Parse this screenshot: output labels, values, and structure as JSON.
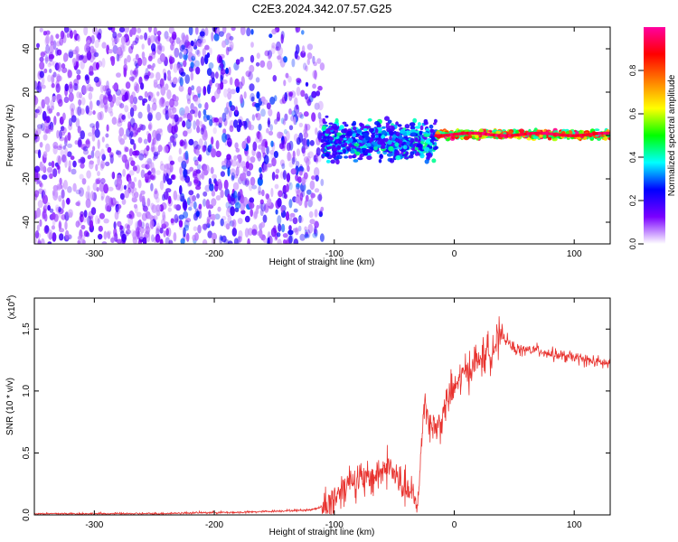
{
  "figure": {
    "title": "C2E3.2024.342.07.57.G25"
  },
  "chart_data": [
    {
      "type": "heatmap",
      "xlabel": "Height of straight line (km)",
      "ylabel": "Frequency (Hz)",
      "xlim": [
        -350,
        130
      ],
      "ylim": [
        -50,
        50
      ],
      "xticks": [
        -300,
        -200,
        -100,
        0,
        100
      ],
      "xtick_labels": [
        "-300",
        "-200",
        "-100",
        "0",
        "100"
      ],
      "yticks": [
        -40,
        -20,
        0,
        20,
        40
      ],
      "ytick_labels": [
        "-40",
        "-20",
        "0",
        "20",
        "40"
      ],
      "grid": false,
      "colorbar": {
        "label": "Normalized spectral amplitude",
        "range": [
          0,
          1
        ],
        "ticks": [
          0,
          0.2,
          0.4,
          0.6,
          0.8
        ],
        "tick_labels": [
          "0.0",
          "0.2",
          "0.4",
          "0.6",
          "0.8"
        ],
        "colors": [
          "#ffffff",
          "#7a00ff",
          "#0000ff",
          "#00ffff",
          "#00ff00",
          "#ffff00",
          "#ff8000",
          "#ff0000",
          "#ff00a0"
        ]
      },
      "regions": [
        {
          "x_range": [
            -350,
            -230
          ],
          "freq_range": [
            -50,
            50
          ],
          "amplitude": [
            0.05,
            0.2
          ]
        },
        {
          "x_range": [
            -230,
            -110
          ],
          "freq_range": [
            -50,
            50
          ],
          "amplitude": [
            0.05,
            0.3
          ]
        },
        {
          "x_range": [
            -110,
            -15
          ],
          "freq_range": [
            -15,
            10
          ],
          "amplitude": [
            0.15,
            0.45
          ]
        },
        {
          "x_range": [
            -15,
            130
          ],
          "freq_range": [
            -2,
            3
          ],
          "amplitude": [
            0.4,
            1.0
          ]
        }
      ]
    },
    {
      "type": "line",
      "xlabel": "Height of straight line (km)",
      "ylabel": "SNR (10 * v/v)",
      "yscale_label": "(x10",
      "yscale_exp": "4",
      "xlim": [
        -350,
        130
      ],
      "ylim": [
        0,
        1.75
      ],
      "xticks": [
        -300,
        -200,
        -100,
        0,
        100
      ],
      "xtick_labels": [
        "-300",
        "-200",
        "-100",
        "0",
        "100"
      ],
      "yticks": [
        0,
        0.5,
        1.0,
        1.5
      ],
      "ytick_labels": [
        "0.0",
        "0.5",
        "1.0",
        "1.5"
      ],
      "grid": false,
      "color": "#e8332f",
      "series": [
        {
          "x": [
            -350,
            -300,
            -250,
            -200,
            -180,
            -150,
            -120,
            -105,
            -95,
            -85,
            -75,
            -65,
            -55,
            -45,
            -40,
            -35,
            -30,
            -28,
            -25,
            -20,
            -15,
            -10,
            -5,
            0,
            5,
            10,
            15,
            20,
            25,
            30,
            35,
            40,
            50,
            60,
            70,
            80,
            90,
            100,
            110,
            120,
            130
          ],
          "y": [
            0.01,
            0.01,
            0.01,
            0.02,
            0.02,
            0.03,
            0.04,
            0.08,
            0.2,
            0.3,
            0.27,
            0.32,
            0.4,
            0.25,
            0.2,
            0.15,
            0.08,
            0.45,
            0.95,
            0.72,
            0.7,
            0.78,
            0.95,
            1.02,
            1.1,
            1.16,
            1.2,
            1.25,
            1.28,
            1.33,
            1.38,
            1.45,
            1.34,
            1.33,
            1.33,
            1.3,
            1.28,
            1.27,
            1.25,
            1.23,
            1.22
          ]
        }
      ]
    }
  ]
}
